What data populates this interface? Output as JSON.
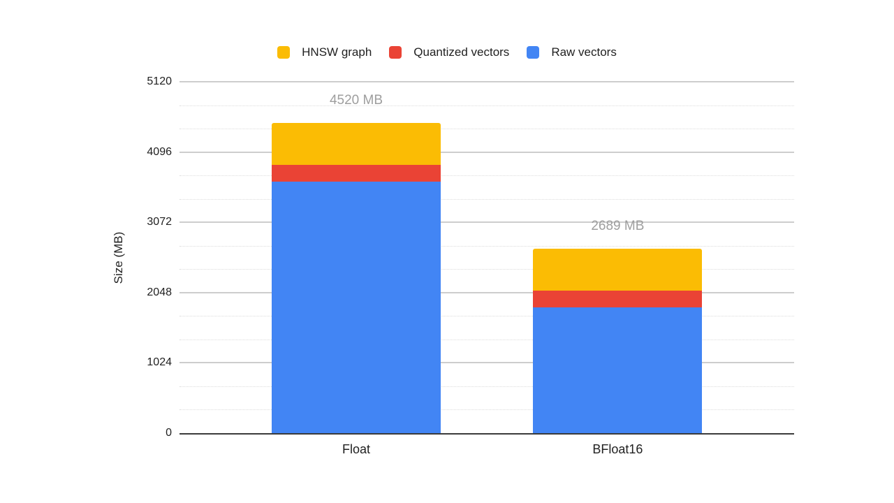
{
  "legend": {
    "items": [
      {
        "label": "HNSW graph",
        "color": "#FBBC04"
      },
      {
        "label": "Quantized vectors",
        "color": "#EA4335"
      },
      {
        "label": "Raw vectors",
        "color": "#4285F4"
      }
    ]
  },
  "chart_data": {
    "type": "bar",
    "subtype": "stacked",
    "title": "",
    "xlabel": "",
    "ylabel": "Size (MB)",
    "categories": [
      "Float",
      "BFloat16"
    ],
    "series": [
      {
        "name": "Raw vectors",
        "color": "#4285F4",
        "values": [
          3662,
          1831
        ]
      },
      {
        "name": "Quantized vectors",
        "color": "#EA4335",
        "values": [
          248,
          248
        ]
      },
      {
        "name": "HNSW graph",
        "color": "#FBBC04",
        "values": [
          610,
          610
        ]
      }
    ],
    "totals": [
      4520,
      2689
    ],
    "total_labels": [
      "4520 MB",
      "2689 MB"
    ],
    "total_label_color": "#9E9E9E",
    "ylim": [
      0,
      5120
    ],
    "yticks": [
      0,
      1024,
      2048,
      3072,
      4096,
      5120
    ],
    "minor_gridlines_between_ticks": 2,
    "grid": true,
    "legend_position": "top"
  }
}
